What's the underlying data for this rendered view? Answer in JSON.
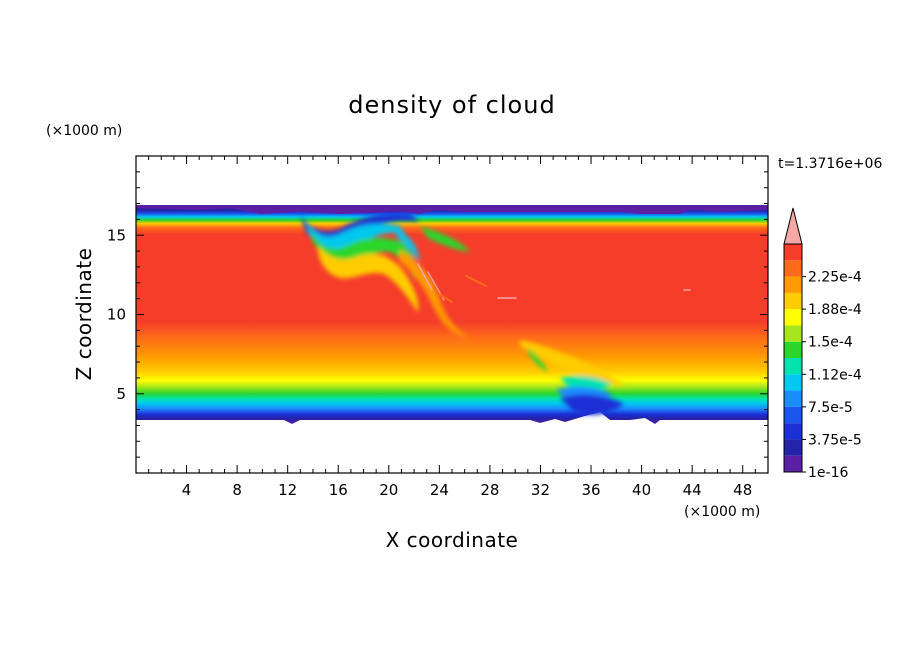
{
  "chart_data": {
    "type": "heatmap",
    "title": "density of cloud",
    "xlabel": "X coordinate",
    "ylabel": "Z coordinate",
    "x_unit": "(×1000 m)",
    "y_unit": "(×1000 m)",
    "time_label": "t=1.3716e+06",
    "xlim": [
      0,
      50
    ],
    "ylim": [
      0,
      20
    ],
    "x_ticks": [
      4,
      8,
      12,
      16,
      20,
      24,
      28,
      32,
      36,
      40,
      44,
      48
    ],
    "y_ticks": [
      5,
      10,
      15
    ],
    "x_tick_labels": [
      "4",
      "8",
      "12",
      "16",
      "20",
      "24",
      "28",
      "32",
      "36",
      "40",
      "44",
      "48"
    ],
    "y_tick_labels": [
      "5",
      "10",
      "15"
    ],
    "colorbar": {
      "levels": [
        1e-16,
        1.875e-05,
        3.75e-05,
        5.625e-05,
        7.5e-05,
        9.375e-05,
        0.0001125,
        0.00013125,
        0.00015,
        0.00016875,
        0.0001875,
        0.00020625,
        0.000225,
        0.00024375
      ],
      "colors": [
        "#5a1fa3",
        "#2323a8",
        "#1a2fd6",
        "#1a55f0",
        "#1a8cff",
        "#00c8ee",
        "#00e3b0",
        "#2ad62a",
        "#a7e61e",
        "#ffff00",
        "#ffcc00",
        "#ff9a00",
        "#ff6a1a",
        "#f53d2a"
      ],
      "overflow_color": "#f6a8a8",
      "labels": [
        "2.25e-4",
        "1.88e-4",
        "1.5e-4",
        "1.12e-4",
        "7.5e-5",
        "3.75e-5",
        "1e-16"
      ]
    },
    "cloud_layer": {
      "base_km": 3.5,
      "top_km": 16.6,
      "core_km": [
        9.5,
        14.5
      ]
    }
  }
}
